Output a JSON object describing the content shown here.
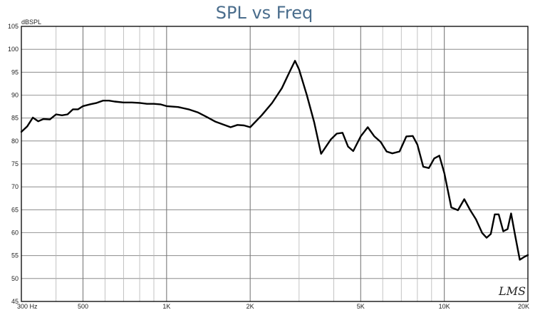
{
  "chart_data": {
    "type": "line",
    "title": "SPL vs Freq",
    "ylabel": "dBSPL",
    "xlabel": "",
    "x_scale": "log",
    "xlim": [
      300,
      20000
    ],
    "ylim": [
      45,
      105
    ],
    "grid": true,
    "y_ticks": [
      45,
      50,
      55,
      60,
      65,
      70,
      75,
      80,
      85,
      90,
      95,
      100,
      105
    ],
    "x_ticks": [
      {
        "value": 300,
        "label": "300  Hz"
      },
      {
        "value": 500,
        "label": "500"
      },
      {
        "value": 1000,
        "label": "1K"
      },
      {
        "value": 2000,
        "label": "2K"
      },
      {
        "value": 5000,
        "label": "5K"
      },
      {
        "value": 10000,
        "label": "10K"
      },
      {
        "value": 20000,
        "label": "20K"
      }
    ],
    "watermark": "LMS",
    "colors": {
      "line": "#000000",
      "title": "#4a6d8c",
      "grid_minor": "#b4b4b4",
      "grid_major": "#7a7a7a",
      "frame": "#000000"
    },
    "series": [
      {
        "x": [
          300,
          315,
          330,
          345,
          360,
          380,
          400,
          420,
          440,
          460,
          480,
          500,
          530,
          560,
          590,
          620,
          650,
          700,
          750,
          800,
          850,
          900,
          950,
          1000,
          1100,
          1200,
          1300,
          1400,
          1500,
          1600,
          1700,
          1800,
          1900,
          2000,
          2200,
          2400,
          2600,
          2700,
          2800,
          2900,
          3000,
          3200,
          3400,
          3600,
          3900,
          4100,
          4300,
          4500,
          4700,
          5000,
          5300,
          5600,
          5900,
          6200,
          6500,
          6900,
          7300,
          7700,
          8000,
          8400,
          8800,
          9200,
          9600,
          10000,
          10600,
          11200,
          11800,
          12400,
          13000,
          13700,
          14200,
          14700,
          15200,
          15700,
          16300,
          16900,
          17400,
          18000,
          18700,
          19500,
          20000
        ],
        "y": [
          82,
          83.2,
          85.1,
          84.3,
          84.8,
          84.7,
          85.8,
          85.6,
          85.8,
          86.9,
          86.9,
          87.6,
          88.0,
          88.3,
          88.8,
          88.8,
          88.6,
          88.4,
          88.4,
          88.3,
          88.1,
          88.1,
          88.0,
          87.6,
          87.4,
          86.9,
          86.2,
          85.2,
          84.2,
          83.6,
          83.0,
          83.5,
          83.4,
          83.0,
          85.6,
          88.3,
          91.5,
          93.6,
          95.6,
          97.5,
          95.6,
          90.0,
          84.1,
          77.2,
          80.3,
          81.6,
          81.8,
          78.8,
          77.8,
          81.0,
          83.0,
          81.0,
          79.8,
          77.7,
          77.3,
          77.7,
          81.0,
          81.1,
          79.2,
          74.4,
          74.1,
          76.2,
          76.8,
          73.0,
          65.5,
          64.9,
          67.3,
          64.9,
          62.9,
          59.9,
          58.9,
          59.7,
          64.0,
          64.0,
          60.3,
          60.8,
          64.2,
          59.3,
          54.1,
          54.8,
          55.1
        ]
      }
    ]
  }
}
